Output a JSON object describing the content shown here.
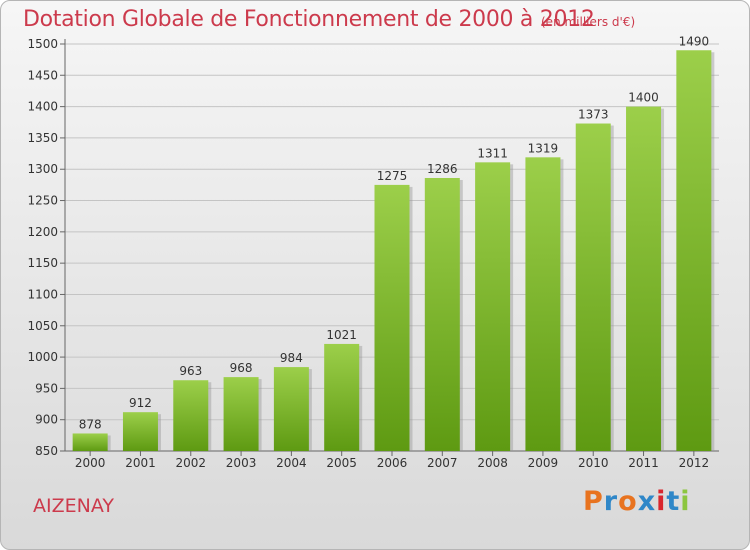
{
  "header": {
    "title": "Dotation Globale de Fonctionnement de 2000 à 2012",
    "subtitle": "(en milliers d'€)"
  },
  "footer": {
    "town": "AIZENAY",
    "logo_text": "Proxiti",
    "logo_colors": [
      "#e8731f",
      "#2f87c8",
      "#e8731f",
      "#2f87c8",
      "#d9272e",
      "#2f87c8",
      "#8cc63f"
    ]
  },
  "chart_data": {
    "type": "bar",
    "title": "Dotation Globale de Fonctionnement de 2000 à 2012",
    "subtitle": "(en milliers d'€)",
    "categories": [
      "2000",
      "2001",
      "2002",
      "2003",
      "2004",
      "2005",
      "2006",
      "2007",
      "2008",
      "2009",
      "2010",
      "2011",
      "2012"
    ],
    "values": [
      878,
      912,
      963,
      968,
      984,
      1021,
      1275,
      1286,
      1311,
      1319,
      1373,
      1400,
      1490
    ],
    "ylim": [
      850,
      1500
    ],
    "yticks": [
      850,
      900,
      950,
      1000,
      1050,
      1100,
      1150,
      1200,
      1250,
      1300,
      1350,
      1400,
      1450,
      1500
    ],
    "grid": true,
    "bar_color_light": "#9ccf4a",
    "bar_color_dark": "#5e9a12",
    "title_color": "#cc3a4c"
  }
}
